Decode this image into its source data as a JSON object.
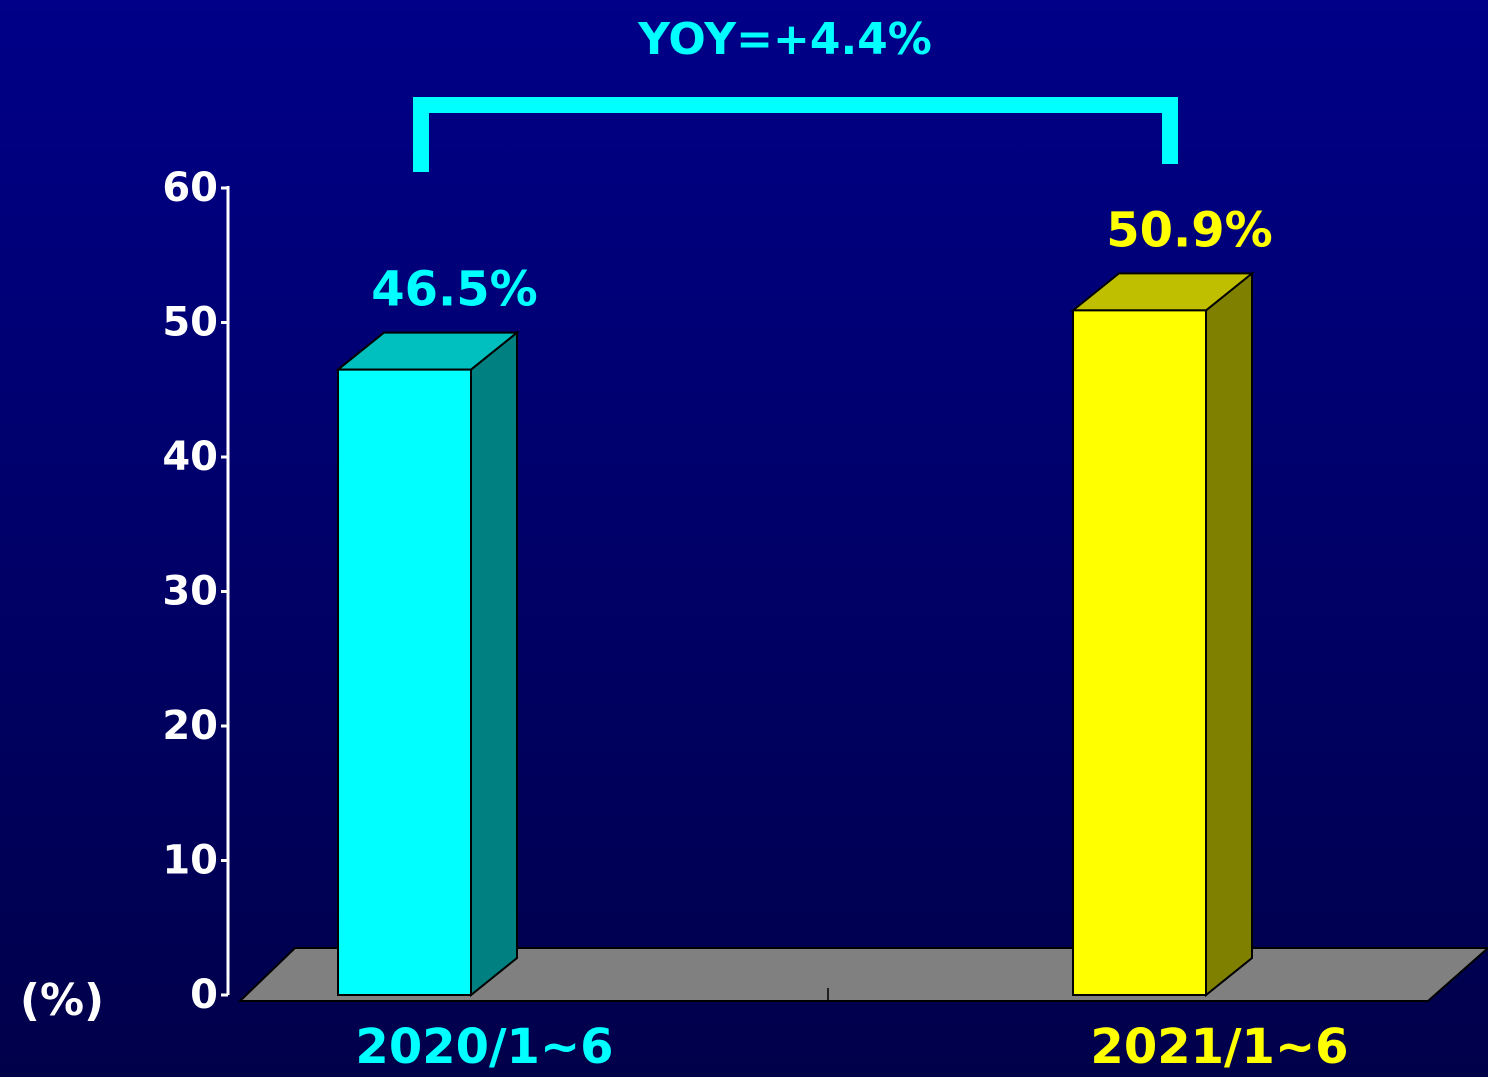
{
  "chart_data": {
    "type": "bar3d",
    "annotation": "YOY=+4.4%",
    "y_axis_label": "(%)",
    "categories": [
      "2020/1~6",
      "2021/1~6"
    ],
    "values": [
      46.5,
      50.9
    ],
    "value_labels": [
      "46.5%",
      "50.9%"
    ],
    "colors": [
      "#00ffff",
      "#ffff00"
    ],
    "ylim": [
      0,
      60
    ],
    "yticks": [
      0,
      10,
      20,
      30,
      40,
      50,
      60
    ]
  }
}
